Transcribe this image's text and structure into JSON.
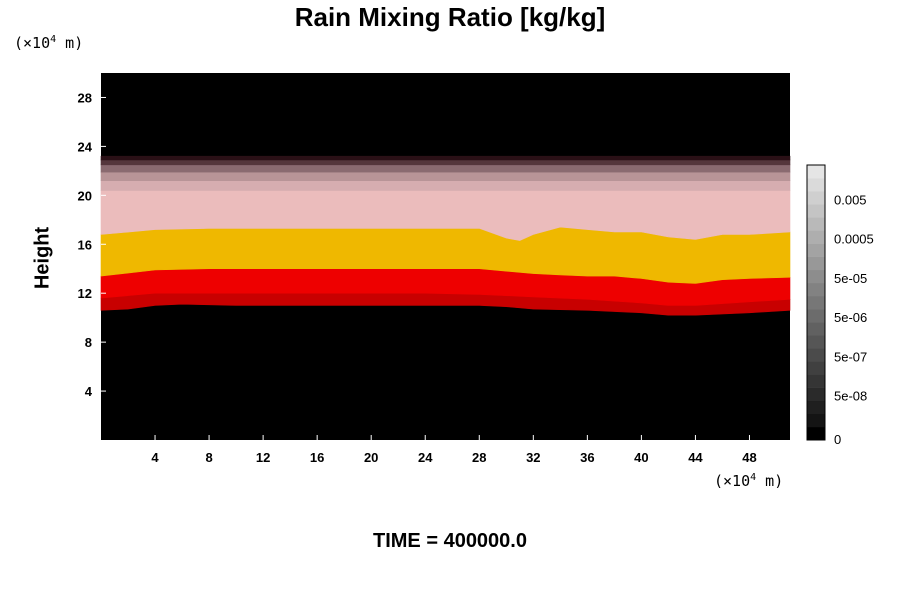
{
  "chart_data": {
    "type": "heatmap",
    "title": "Rain Mixing Ratio [kg/kg]",
    "ylabel": "Height",
    "y_unit": "(×10",
    "x_unit": "(×10",
    "unit_exp": "4",
    "unit_suffix": " m)",
    "footer": "TIME = 400000.0",
    "xlim": [
      0,
      51
    ],
    "ylim": [
      0,
      30
    ],
    "x_ticks": [
      4,
      8,
      12,
      16,
      20,
      24,
      28,
      32,
      36,
      40,
      44,
      48
    ],
    "y_ticks": [
      4,
      8,
      12,
      16,
      20,
      24,
      28
    ],
    "background_color": "#000000",
    "bands": [
      {
        "color": "#c80000",
        "lower": [
          [
            0,
            10.6
          ],
          [
            2,
            10.7
          ],
          [
            4,
            11.0
          ],
          [
            6,
            11.1
          ],
          [
            10,
            11.0
          ],
          [
            16,
            11.0
          ],
          [
            22,
            11.0
          ],
          [
            28,
            11.0
          ],
          [
            30,
            10.9
          ],
          [
            32,
            10.7
          ],
          [
            36,
            10.6
          ],
          [
            40,
            10.4
          ],
          [
            42,
            10.2
          ],
          [
            44,
            10.2
          ],
          [
            48,
            10.4
          ],
          [
            51,
            10.6
          ]
        ],
        "upper": [
          [
            0,
            11.6
          ],
          [
            4,
            12.0
          ],
          [
            8,
            12.0
          ],
          [
            12,
            12.0
          ],
          [
            16,
            12.0
          ],
          [
            20,
            12.0
          ],
          [
            24,
            12.0
          ],
          [
            28,
            11.9
          ],
          [
            32,
            11.7
          ],
          [
            36,
            11.5
          ],
          [
            40,
            11.2
          ],
          [
            42,
            11.0
          ],
          [
            44,
            11.0
          ],
          [
            48,
            11.3
          ],
          [
            51,
            11.5
          ]
        ]
      },
      {
        "color": "#ee0000",
        "lower": [
          [
            0,
            11.6
          ],
          [
            4,
            12.0
          ],
          [
            8,
            12.0
          ],
          [
            12,
            12.0
          ],
          [
            16,
            12.0
          ],
          [
            20,
            12.0
          ],
          [
            24,
            12.0
          ],
          [
            28,
            11.9
          ],
          [
            32,
            11.7
          ],
          [
            36,
            11.5
          ],
          [
            40,
            11.2
          ],
          [
            42,
            11.0
          ],
          [
            44,
            11.0
          ],
          [
            48,
            11.3
          ],
          [
            51,
            11.5
          ]
        ],
        "upper": [
          [
            0,
            13.4
          ],
          [
            4,
            13.9
          ],
          [
            8,
            14.0
          ],
          [
            12,
            14.0
          ],
          [
            16,
            14.0
          ],
          [
            20,
            14.0
          ],
          [
            24,
            14.0
          ],
          [
            28,
            14.0
          ],
          [
            30,
            13.8
          ],
          [
            32,
            13.6
          ],
          [
            34,
            13.5
          ],
          [
            36,
            13.4
          ],
          [
            38,
            13.4
          ],
          [
            40,
            13.2
          ],
          [
            42,
            12.9
          ],
          [
            44,
            12.8
          ],
          [
            46,
            13.1
          ],
          [
            48,
            13.2
          ],
          [
            51,
            13.3
          ]
        ]
      },
      {
        "color": "#efb800",
        "lower": [
          [
            0,
            13.4
          ],
          [
            4,
            13.9
          ],
          [
            8,
            14.0
          ],
          [
            12,
            14.0
          ],
          [
            16,
            14.0
          ],
          [
            20,
            14.0
          ],
          [
            24,
            14.0
          ],
          [
            28,
            14.0
          ],
          [
            30,
            13.8
          ],
          [
            32,
            13.6
          ],
          [
            34,
            13.5
          ],
          [
            36,
            13.4
          ],
          [
            38,
            13.4
          ],
          [
            40,
            13.2
          ],
          [
            42,
            12.9
          ],
          [
            44,
            12.8
          ],
          [
            46,
            13.1
          ],
          [
            48,
            13.2
          ],
          [
            51,
            13.3
          ]
        ],
        "upper": [
          [
            0,
            16.8
          ],
          [
            4,
            17.2
          ],
          [
            8,
            17.3
          ],
          [
            12,
            17.3
          ],
          [
            16,
            17.3
          ],
          [
            20,
            17.3
          ],
          [
            24,
            17.3
          ],
          [
            28,
            17.3
          ],
          [
            30,
            16.5
          ],
          [
            31,
            16.3
          ],
          [
            32,
            16.8
          ],
          [
            34,
            17.4
          ],
          [
            36,
            17.2
          ],
          [
            38,
            17.0
          ],
          [
            40,
            17.0
          ],
          [
            42,
            16.6
          ],
          [
            44,
            16.4
          ],
          [
            46,
            16.8
          ],
          [
            48,
            16.8
          ],
          [
            51,
            17.0
          ]
        ]
      },
      {
        "color": "#ebbcbc",
        "lower": [
          [
            0,
            16.8
          ],
          [
            4,
            17.2
          ],
          [
            8,
            17.3
          ],
          [
            12,
            17.3
          ],
          [
            16,
            17.3
          ],
          [
            20,
            17.3
          ],
          [
            24,
            17.3
          ],
          [
            28,
            17.3
          ],
          [
            30,
            16.5
          ],
          [
            31,
            16.3
          ],
          [
            32,
            16.8
          ],
          [
            34,
            17.4
          ],
          [
            36,
            17.2
          ],
          [
            38,
            17.0
          ],
          [
            40,
            17.0
          ],
          [
            42,
            16.6
          ],
          [
            44,
            16.4
          ],
          [
            46,
            16.8
          ],
          [
            48,
            16.8
          ],
          [
            51,
            17.0
          ]
        ],
        "upper": [
          [
            0,
            20.4
          ],
          [
            51,
            20.4
          ]
        ]
      },
      {
        "color": "#d6adb0",
        "lower": [
          [
            0,
            20.4
          ],
          [
            51,
            20.4
          ]
        ],
        "upper": [
          [
            0,
            21.2
          ],
          [
            51,
            21.2
          ]
        ]
      },
      {
        "color": "#b89497",
        "lower": [
          [
            0,
            21.2
          ],
          [
            51,
            21.2
          ]
        ],
        "upper": [
          [
            0,
            21.9
          ],
          [
            51,
            21.9
          ]
        ]
      },
      {
        "color": "#8a6a70",
        "lower": [
          [
            0,
            21.9
          ],
          [
            51,
            21.9
          ]
        ],
        "upper": [
          [
            0,
            22.5
          ],
          [
            51,
            22.5
          ]
        ]
      },
      {
        "color": "#55363c",
        "lower": [
          [
            0,
            22.5
          ],
          [
            51,
            22.5
          ]
        ],
        "upper": [
          [
            0,
            22.9
          ],
          [
            51,
            22.9
          ]
        ]
      },
      {
        "color": "#2a1016",
        "lower": [
          [
            0,
            22.9
          ],
          [
            51,
            22.9
          ]
        ],
        "upper": [
          [
            0,
            23.2
          ],
          [
            51,
            23.2
          ]
        ]
      }
    ],
    "colorbar": {
      "colors": [
        "#000000",
        "#141414",
        "#1f1f1f",
        "#2a2a2a",
        "#353535",
        "#404040",
        "#4b4b4b",
        "#565656",
        "#616161",
        "#6c6c6c",
        "#777777",
        "#828282",
        "#8d8d8d",
        "#989898",
        "#a3a3a3",
        "#aeaeae",
        "#b9b9b9",
        "#c4c4c4",
        "#cfcfcf",
        "#dadada",
        "#e5e5e5"
      ],
      "labels": [
        "0",
        "5e-08",
        "5e-07",
        "5e-06",
        "5e-05",
        "0.0005",
        "0.005"
      ]
    }
  }
}
